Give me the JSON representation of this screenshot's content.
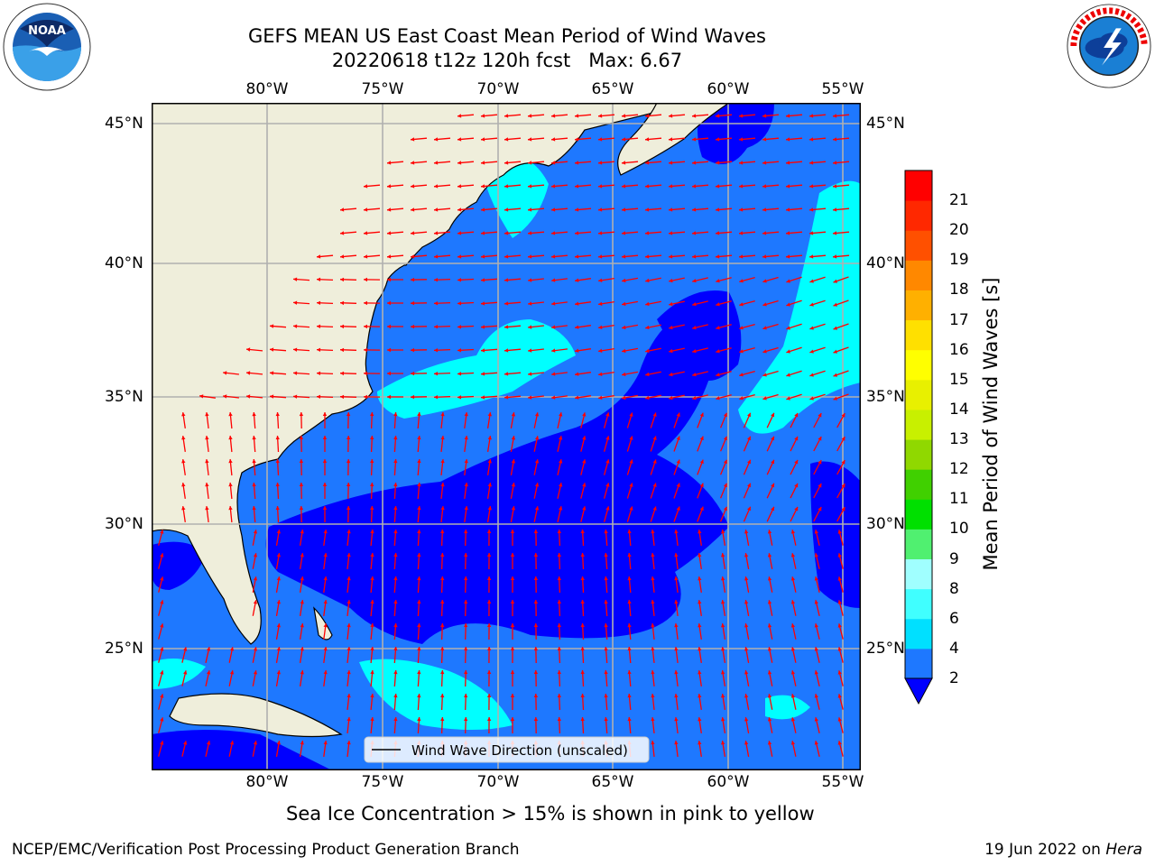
{
  "title_line1": "GEFS MEAN US East Coast Mean Period of Wind Waves",
  "title_line2": "20220618 t12z 120h fcst   Max: 6.67",
  "lon_labels": [
    "80°W",
    "75°W",
    "70°W",
    "65°W",
    "60°W",
    "55°W"
  ],
  "lat_labels": [
    "45°N",
    "40°N",
    "35°N",
    "30°N",
    "25°N"
  ],
  "legend_label": "Wind Wave Direction (unscaled)",
  "colorbar": {
    "label": "Mean Period of Wind Waves [s]",
    "ticks": [
      "2",
      "4",
      "6",
      "8",
      "9",
      "10",
      "11",
      "12",
      "13",
      "14",
      "15",
      "16",
      "17",
      "18",
      "19",
      "20",
      "21"
    ],
    "colors": [
      "#1e78ff",
      "#00e0ff",
      "#40ffff",
      "#a0ffff",
      "#50f070",
      "#00e000",
      "#40d000",
      "#90d800",
      "#c8f000",
      "#e8f000",
      "#ffff00",
      "#ffe000",
      "#ffb000",
      "#ff8800",
      "#ff5000",
      "#ff2800",
      "#ff0000"
    ],
    "under_color": "#0000ff"
  },
  "ocean_colors": {
    "band_2_4": "#1e78ff",
    "band_lt_2": "#0000ff",
    "band_4_6": "#00ffff",
    "land": "#efeedb",
    "arrow": "#ff0000",
    "grid": "#b0b0b0"
  },
  "subtitle": "Sea Ice Concentration > 15% is shown in pink to yellow",
  "footer_left": "NCEP/EMC/Verification Post Processing Product Generation Branch",
  "footer_date": "19 Jun 2022 on ",
  "footer_host": "Hera",
  "logos": {
    "left": "NOAA",
    "right": "NATIONAL WEATHER SERVICE"
  }
}
